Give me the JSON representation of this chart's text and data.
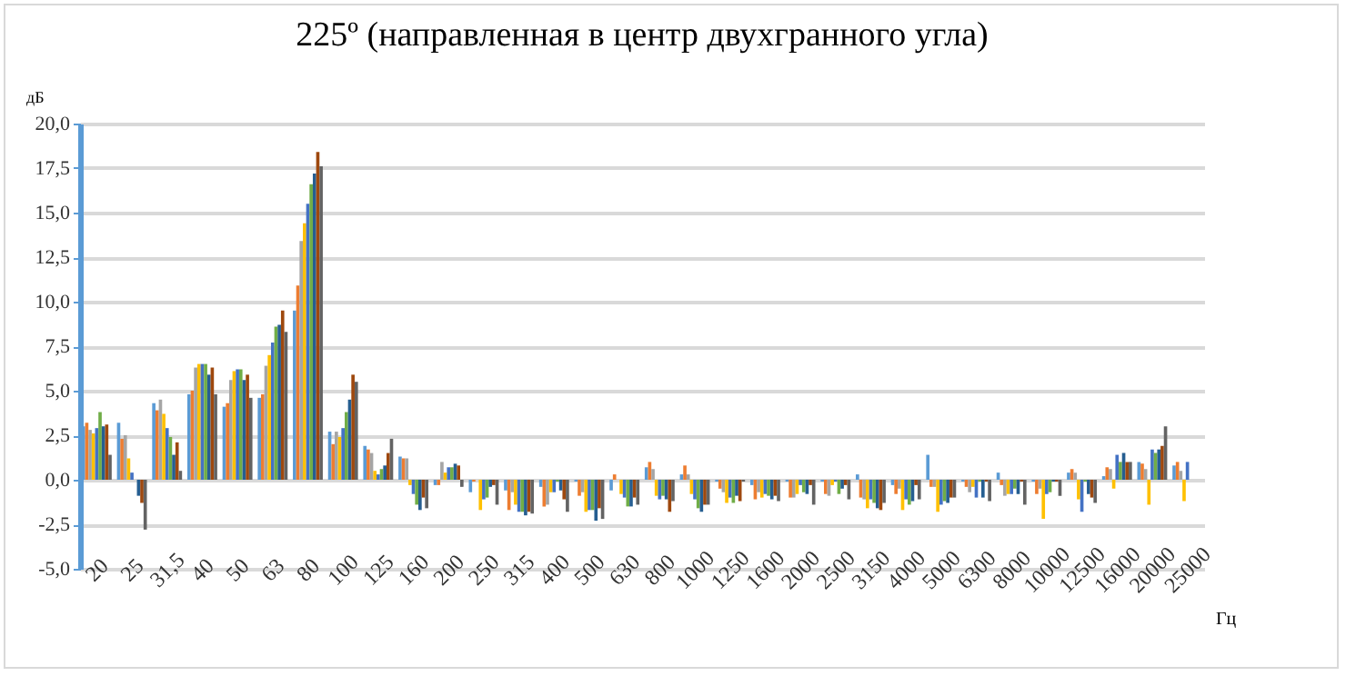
{
  "chart_data": {
    "type": "bar",
    "title": "225º (направленная в центр двухгранного угла)",
    "xlabel": "Гц",
    "ylabel": "дБ",
    "categories": [
      "20",
      "25",
      "31,5",
      "40",
      "50",
      "63",
      "80",
      "100",
      "125",
      "160",
      "200",
      "250",
      "315",
      "400",
      "500",
      "630",
      "800",
      "1000",
      "1250",
      "1600",
      "2000",
      "2500",
      "3150",
      "4000",
      "5000",
      "6300",
      "8000",
      "10000",
      "12500",
      "16000",
      "20000",
      "25000"
    ],
    "ylim": [
      -5,
      20
    ],
    "yticks": [
      {
        "value": -5,
        "label": "-5,0"
      },
      {
        "value": -2.5,
        "label": "-2,5"
      },
      {
        "value": 0,
        "label": "0,0"
      },
      {
        "value": 2.5,
        "label": "2,5"
      },
      {
        "value": 5,
        "label": "5,0"
      },
      {
        "value": 7.5,
        "label": "7,5"
      },
      {
        "value": 10,
        "label": "10,0"
      },
      {
        "value": 12.5,
        "label": "12,5"
      },
      {
        "value": 15,
        "label": "15,0"
      },
      {
        "value": 17.5,
        "label": "17,5"
      },
      {
        "value": 20,
        "label": "20,0"
      }
    ],
    "grid": "y",
    "legend": false,
    "series": [
      {
        "color": "#5b9bd5",
        "values": [
          3.0,
          3.2,
          4.3,
          4.8,
          4.1,
          4.6,
          9.5,
          2.7,
          1.9,
          1.3,
          -0.3,
          -0.7,
          -0.6,
          -0.4,
          -0.1,
          -0.6,
          0.7,
          0.3,
          -0.1,
          -0.3,
          -0.1,
          -0.1,
          0.3,
          -0.3,
          1.4,
          -0.1,
          0.4,
          -0.1,
          0.4,
          0.2,
          1.0,
          0.8
        ]
      },
      {
        "color": "#ed7d31",
        "values": [
          3.2,
          2.3,
          3.9,
          5.0,
          4.3,
          4.8,
          10.9,
          2.0,
          1.7,
          1.2,
          -0.3,
          -0.1,
          -1.7,
          -1.5,
          -0.9,
          0.3,
          1.0,
          0.8,
          -0.5,
          -1.1,
          -1.0,
          -0.8,
          -1.0,
          -0.8,
          -0.4,
          -0.4,
          -0.3,
          -0.8,
          0.6,
          0.7,
          0.9,
          1.0
        ]
      },
      {
        "color": "#a5a5a5",
        "values": [
          2.8,
          2.5,
          4.5,
          6.3,
          5.6,
          6.4,
          13.4,
          2.7,
          1.5,
          1.2,
          1.0,
          0.0,
          -0.7,
          -1.4,
          -0.7,
          0.0,
          0.6,
          0.3,
          -0.7,
          -0.7,
          -1.0,
          -0.9,
          -1.1,
          -0.5,
          -0.4,
          -0.7,
          -0.9,
          -0.5,
          0.4,
          0.6,
          0.6,
          0.5
        ]
      },
      {
        "color": "#ffc000",
        "values": [
          2.6,
          1.2,
          3.7,
          6.5,
          6.1,
          7.0,
          14.4,
          2.4,
          0.5,
          -0.3,
          0.4,
          -1.7,
          -1.4,
          -0.7,
          -1.8,
          -0.8,
          -0.9,
          -0.8,
          -1.3,
          -1.0,
          -0.8,
          -0.3,
          -1.6,
          -1.7,
          -1.8,
          -0.4,
          -0.8,
          -2.2,
          -1.1,
          -0.5,
          -1.4,
          -1.2
        ]
      },
      {
        "color": "#4472c4",
        "values": [
          2.9,
          0.4,
          2.9,
          6.5,
          6.2,
          7.7,
          15.5,
          2.9,
          0.3,
          -0.8,
          0.7,
          -1.1,
          -1.8,
          -0.7,
          -1.7,
          -1.0,
          -1.1,
          -1.1,
          -1.0,
          -0.8,
          -0.3,
          -0.1,
          -1.1,
          -1.1,
          -1.4,
          -1.0,
          -0.8,
          -0.8,
          -1.8,
          1.4,
          1.7,
          1.0
        ]
      },
      {
        "color": "#70ad47",
        "values": [
          3.8,
          0.0,
          2.4,
          6.5,
          6.2,
          8.6,
          16.6,
          3.8,
          0.6,
          -1.4,
          0.7,
          -1.0,
          -1.8,
          -0.1,
          -1.7,
          -1.5,
          -0.9,
          -1.6,
          -1.3,
          -0.9,
          -0.7,
          -0.8,
          -1.3,
          -1.4,
          -1.2,
          -0.1,
          -0.5,
          -0.7,
          -0.1,
          1.0,
          1.5,
          null
        ]
      },
      {
        "color": "#255e91",
        "values": [
          3.0,
          -0.9,
          1.4,
          5.9,
          5.6,
          8.7,
          17.2,
          4.5,
          0.8,
          -1.7,
          0.9,
          -0.4,
          -2.0,
          -0.6,
          -2.3,
          -1.5,
          -1.1,
          -1.8,
          -0.9,
          -1.1,
          -0.8,
          -0.5,
          -1.6,
          -1.2,
          -1.3,
          -1.0,
          -0.8,
          -0.1,
          -0.8,
          1.5,
          1.7,
          null
        ]
      },
      {
        "color": "#9e480e",
        "values": [
          3.1,
          -1.3,
          2.1,
          6.3,
          5.9,
          9.5,
          18.4,
          5.9,
          1.5,
          -1.0,
          0.8,
          -0.3,
          -1.8,
          -1.1,
          -1.6,
          -1.0,
          -1.8,
          -1.4,
          -1.2,
          -0.9,
          -0.3,
          -0.3,
          -1.7,
          -0.3,
          -1.0,
          -0.1,
          -0.1,
          -0.1,
          -1.0,
          1.0,
          1.9,
          null
        ]
      },
      {
        "color": "#636363",
        "values": [
          1.4,
          -2.8,
          0.5,
          4.8,
          4.6,
          8.3,
          17.6,
          5.5,
          2.3,
          -1.6,
          -0.4,
          -1.4,
          -1.9,
          -1.8,
          -2.2,
          -1.4,
          -1.2,
          -1.4,
          -0.1,
          -1.2,
          -1.4,
          -1.1,
          -1.3,
          -1.1,
          -1.0,
          -1.2,
          -1.4,
          -0.9,
          -1.3,
          1.0,
          3.0,
          null
        ]
      }
    ]
  }
}
